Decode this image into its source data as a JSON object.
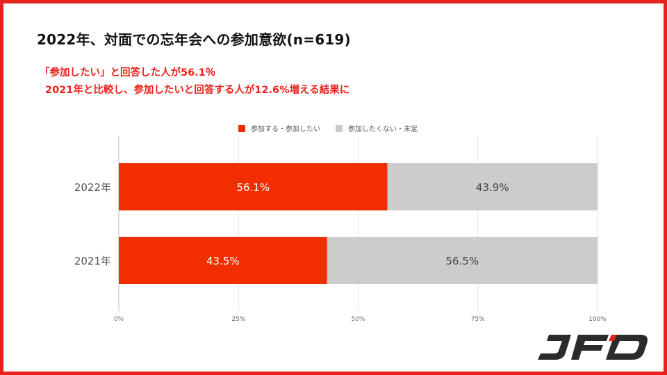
{
  "title": "2022年、対面での忘年会への参加意欲(n=619)",
  "subtitle_line1": "「参加したい」と回答した人が56.1％",
  "subtitle_line2": "2021年と比較し、参加したいと回答する人が12.6%増える結果に",
  "logo_text": "JFD",
  "colors": {
    "frame": "#e8231c",
    "accent": "#e8231c",
    "series_join": "#f22e00",
    "series_decline": "#cccccc"
  },
  "chart_data": {
    "type": "bar",
    "orientation": "horizontal",
    "stacked": "percent",
    "categories": [
      "2022年",
      "2021年"
    ],
    "series": [
      {
        "name": "参加する・参加したい",
        "values": [
          56.1,
          43.5
        ],
        "labels": [
          "56.1%",
          "43.5%"
        ],
        "color": "#f22e00",
        "label_color": "#ffffff"
      },
      {
        "name": "参加したくない・未定",
        "values": [
          43.9,
          56.5
        ],
        "labels": [
          "43.9%",
          "56.5%"
        ],
        "color": "#cccccc",
        "label_color": "#444444"
      }
    ],
    "xlim": [
      0,
      100
    ],
    "x_ticks": [
      "0%",
      "25%",
      "50%",
      "75%",
      "100%"
    ],
    "grid": true,
    "legend_position": "top-center"
  }
}
